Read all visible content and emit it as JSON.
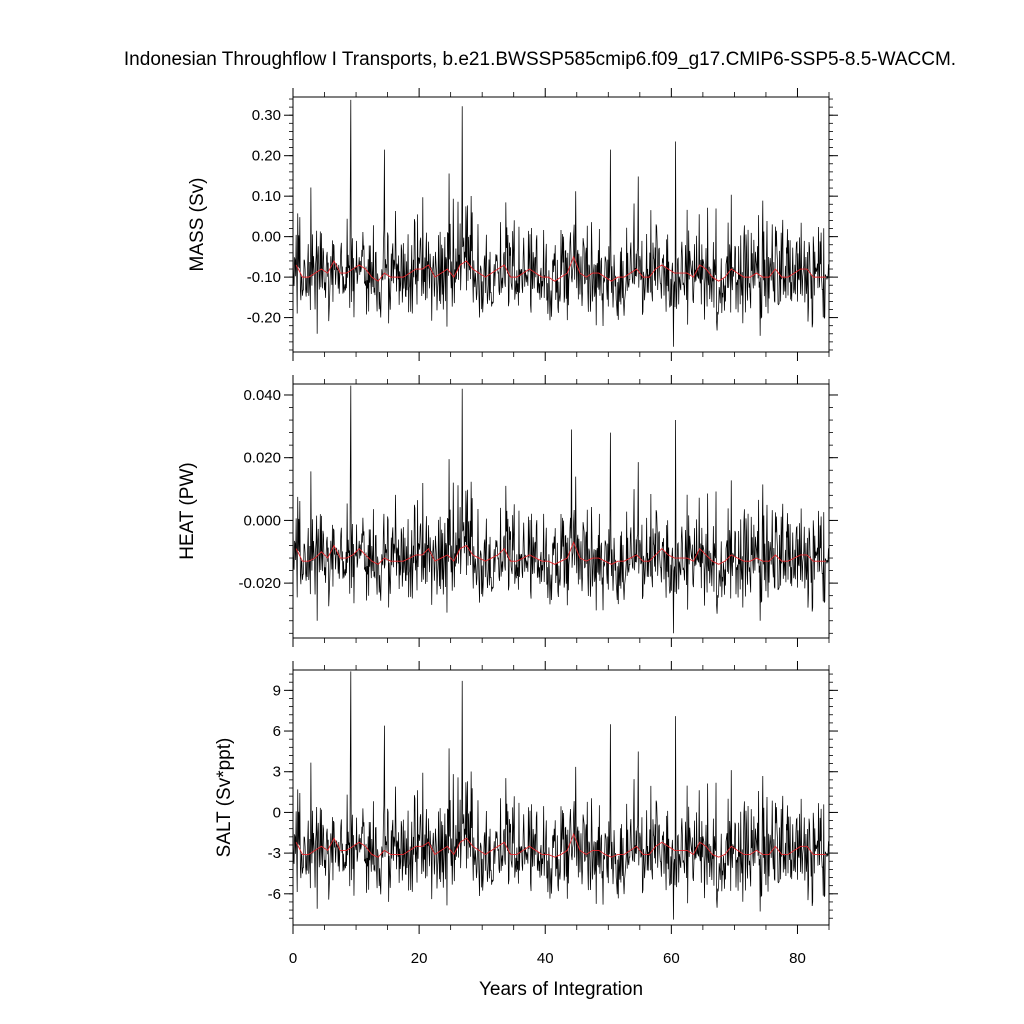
{
  "chart_data": {
    "type": "line",
    "title": "Indonesian Throughflow I Transports, b.e21.BWSSP585cmip6.f09_g17.CMIP6-SSP5-8.5-WACCM.",
    "xlabel": "Years of Integration",
    "xlim": [
      0,
      85
    ],
    "x_ticks": [
      0,
      20,
      40,
      60,
      80
    ],
    "x_tick_labels": [
      "0",
      "20",
      "40",
      "60",
      "80"
    ],
    "samples_per_year": 12,
    "grid": false,
    "colors": {
      "monthly": "#000000",
      "annual": "#e3262b"
    },
    "panels": [
      {
        "name": "mass",
        "ylabel": "MASS (Sv)",
        "ylim": [
          -0.285,
          0.345
        ],
        "y_ticks": [
          0.3,
          0.2,
          0.1,
          0.0,
          -0.1,
          -0.2
        ],
        "y_tick_labels": [
          "0.30",
          "0.20",
          "0.10",
          "0.00",
          "-0.10",
          "-0.20"
        ],
        "mean": -0.095,
        "amplitude": 0.085,
        "min": -0.272,
        "max": 0.338,
        "peaks": [
          [
            9.2,
            0.338
          ],
          [
            26.8,
            0.322
          ],
          [
            60.7,
            0.235
          ],
          [
            14.5,
            0.215
          ],
          [
            50.3,
            0.215
          ]
        ],
        "troughs": [
          [
            60.3,
            -0.272
          ],
          [
            74.1,
            -0.245
          ],
          [
            3.8,
            -0.24
          ]
        ],
        "annual_mean": [
          -0.07,
          -0.1,
          -0.1,
          -0.09,
          -0.08,
          -0.09,
          -0.06,
          -0.09,
          -0.09,
          -0.08,
          -0.07,
          -0.08,
          -0.1,
          -0.11,
          -0.09,
          -0.1,
          -0.1,
          -0.1,
          -0.09,
          -0.08,
          -0.08,
          -0.07,
          -0.1,
          -0.09,
          -0.08,
          -0.1,
          -0.07,
          -0.06,
          -0.08,
          -0.09,
          -0.1,
          -0.09,
          -0.08,
          -0.07,
          -0.1,
          -0.1,
          -0.09,
          -0.08,
          -0.09,
          -0.1,
          -0.1,
          -0.11,
          -0.1,
          -0.09,
          -0.05,
          -0.09,
          -0.1,
          -0.09,
          -0.09,
          -0.1,
          -0.11,
          -0.1,
          -0.1,
          -0.09,
          -0.08,
          -0.1,
          -0.1,
          -0.08,
          -0.07,
          -0.08,
          -0.09,
          -0.09,
          -0.09,
          -0.1,
          -0.07,
          -0.08,
          -0.1,
          -0.11,
          -0.1,
          -0.08,
          -0.09,
          -0.1,
          -0.1,
          -0.09,
          -0.1,
          -0.1,
          -0.08,
          -0.1,
          -0.1,
          -0.09,
          -0.08,
          -0.08,
          -0.1,
          -0.1,
          -0.1
        ]
      },
      {
        "name": "heat",
        "ylabel": "HEAT (PW)",
        "ylim": [
          -0.0375,
          0.0435
        ],
        "y_ticks": [
          0.04,
          0.02,
          0.0,
          -0.02
        ],
        "y_tick_labels": [
          "0.040",
          "0.020",
          "0.000",
          "-0.020"
        ],
        "mean": -0.012,
        "amplitude": 0.011,
        "min": -0.036,
        "max": 0.043,
        "peaks": [
          [
            9.2,
            0.043
          ],
          [
            26.8,
            0.042
          ],
          [
            60.7,
            0.032
          ],
          [
            44.2,
            0.029
          ],
          [
            50.3,
            0.028
          ]
        ],
        "troughs": [
          [
            60.3,
            -0.036
          ],
          [
            74.1,
            -0.032
          ],
          [
            3.8,
            -0.032
          ]
        ],
        "annual_mean": [
          -0.009,
          -0.013,
          -0.013,
          -0.012,
          -0.01,
          -0.012,
          -0.008,
          -0.012,
          -0.012,
          -0.011,
          -0.009,
          -0.011,
          -0.013,
          -0.014,
          -0.012,
          -0.013,
          -0.013,
          -0.013,
          -0.012,
          -0.011,
          -0.011,
          -0.009,
          -0.013,
          -0.012,
          -0.011,
          -0.013,
          -0.009,
          -0.008,
          -0.011,
          -0.012,
          -0.013,
          -0.012,
          -0.011,
          -0.009,
          -0.013,
          -0.013,
          -0.012,
          -0.011,
          -0.012,
          -0.013,
          -0.013,
          -0.014,
          -0.013,
          -0.012,
          -0.007,
          -0.012,
          -0.013,
          -0.012,
          -0.012,
          -0.013,
          -0.014,
          -0.013,
          -0.013,
          -0.012,
          -0.011,
          -0.013,
          -0.013,
          -0.011,
          -0.009,
          -0.011,
          -0.012,
          -0.012,
          -0.012,
          -0.013,
          -0.009,
          -0.011,
          -0.013,
          -0.014,
          -0.013,
          -0.011,
          -0.012,
          -0.013,
          -0.013,
          -0.012,
          -0.013,
          -0.013,
          -0.011,
          -0.013,
          -0.013,
          -0.012,
          -0.011,
          -0.011,
          -0.013,
          -0.013,
          -0.013
        ]
      },
      {
        "name": "salt",
        "ylabel": "SALT (Sv*ppt)",
        "ylim": [
          -8.3,
          10.5
        ],
        "y_ticks": [
          9,
          6,
          3,
          0,
          -3,
          -6
        ],
        "y_tick_labels": [
          "9",
          "6",
          "3",
          "0",
          "-3",
          "-6"
        ],
        "mean": -3.0,
        "amplitude": 2.6,
        "min": -7.9,
        "max": 10.4,
        "peaks": [
          [
            9.2,
            10.4
          ],
          [
            26.8,
            9.7
          ],
          [
            60.7,
            7.1
          ],
          [
            14.5,
            6.4
          ],
          [
            50.3,
            6.5
          ]
        ],
        "troughs": [
          [
            60.3,
            -7.9
          ],
          [
            74.1,
            -7.3
          ],
          [
            3.8,
            -7.1
          ]
        ],
        "annual_mean": [
          -2.2,
          -3.1,
          -3.1,
          -2.8,
          -2.5,
          -2.8,
          -1.9,
          -2.8,
          -2.8,
          -2.5,
          -2.2,
          -2.5,
          -3.1,
          -3.3,
          -2.8,
          -3.1,
          -3.1,
          -3.1,
          -2.8,
          -2.5,
          -2.5,
          -2.2,
          -3.1,
          -2.8,
          -2.5,
          -3.1,
          -2.2,
          -1.9,
          -2.5,
          -2.8,
          -3.1,
          -2.8,
          -2.5,
          -2.2,
          -3.1,
          -3.1,
          -2.8,
          -2.5,
          -2.8,
          -3.1,
          -3.1,
          -3.3,
          -3.1,
          -2.8,
          -1.6,
          -2.8,
          -3.1,
          -2.8,
          -2.8,
          -3.1,
          -3.3,
          -3.1,
          -3.1,
          -2.8,
          -2.5,
          -3.1,
          -3.1,
          -2.5,
          -2.2,
          -2.5,
          -2.8,
          -2.8,
          -2.8,
          -3.1,
          -2.2,
          -2.5,
          -3.1,
          -3.3,
          -3.1,
          -2.5,
          -2.8,
          -3.1,
          -3.1,
          -2.8,
          -3.1,
          -3.1,
          -2.5,
          -3.1,
          -3.1,
          -2.8,
          -2.5,
          -2.5,
          -3.1,
          -3.1,
          -3.1
        ]
      }
    ]
  }
}
